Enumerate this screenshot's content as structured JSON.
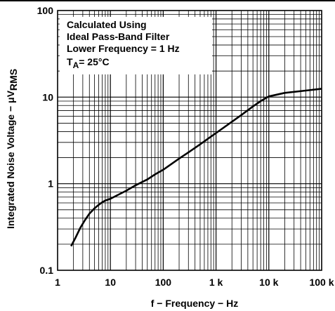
{
  "chart_data": {
    "type": "line",
    "xlabel": "f − Frequency − Hz",
    "ylabel": {
      "main": "Integrated Noise Voltage − μV",
      "sub": "RMS"
    },
    "x_scale": "log",
    "y_scale": "log",
    "xlim": [
      1,
      100000
    ],
    "ylim": [
      0.1,
      100
    ],
    "x_ticks": [
      {
        "value": 1,
        "label": "1"
      },
      {
        "value": 10,
        "label": "10"
      },
      {
        "value": 100,
        "label": "100"
      },
      {
        "value": 1000,
        "label": "1 k"
      },
      {
        "value": 10000,
        "label": "10 k"
      },
      {
        "value": 100000,
        "label": "100 k"
      }
    ],
    "y_ticks": [
      {
        "value": 0.1,
        "label": "0.1"
      },
      {
        "value": 1,
        "label": "1"
      },
      {
        "value": 10,
        "label": "10"
      },
      {
        "value": 100,
        "label": "100"
      }
    ],
    "grid": true,
    "annotation": {
      "lines": [
        "Calculated Using",
        "Ideal Pass-Band Filter",
        "Lower Frequency = 1 Hz"
      ],
      "temp": {
        "prefix": "T",
        "sub": "A",
        "rest": "= 25°C"
      }
    },
    "series": [
      {
        "color": "#000000",
        "points": [
          [
            1.8,
            0.19
          ],
          [
            2.2,
            0.24
          ],
          [
            2.7,
            0.31
          ],
          [
            3.3,
            0.38
          ],
          [
            4,
            0.45
          ],
          [
            5,
            0.52
          ],
          [
            6,
            0.57
          ],
          [
            7,
            0.61
          ],
          [
            8,
            0.64
          ],
          [
            10,
            0.67
          ],
          [
            15,
            0.76
          ],
          [
            20,
            0.83
          ],
          [
            30,
            0.96
          ],
          [
            50,
            1.12
          ],
          [
            70,
            1.28
          ],
          [
            100,
            1.45
          ],
          [
            200,
            1.95
          ],
          [
            300,
            2.3
          ],
          [
            500,
            2.85
          ],
          [
            700,
            3.3
          ],
          [
            1000,
            3.85
          ],
          [
            2000,
            5.2
          ],
          [
            3000,
            6.2
          ],
          [
            5000,
            7.8
          ],
          [
            7000,
            9.0
          ],
          [
            10000,
            10.2
          ],
          [
            20000,
            11.2
          ],
          [
            50000,
            11.9
          ],
          [
            100000,
            12.5
          ]
        ]
      }
    ]
  }
}
